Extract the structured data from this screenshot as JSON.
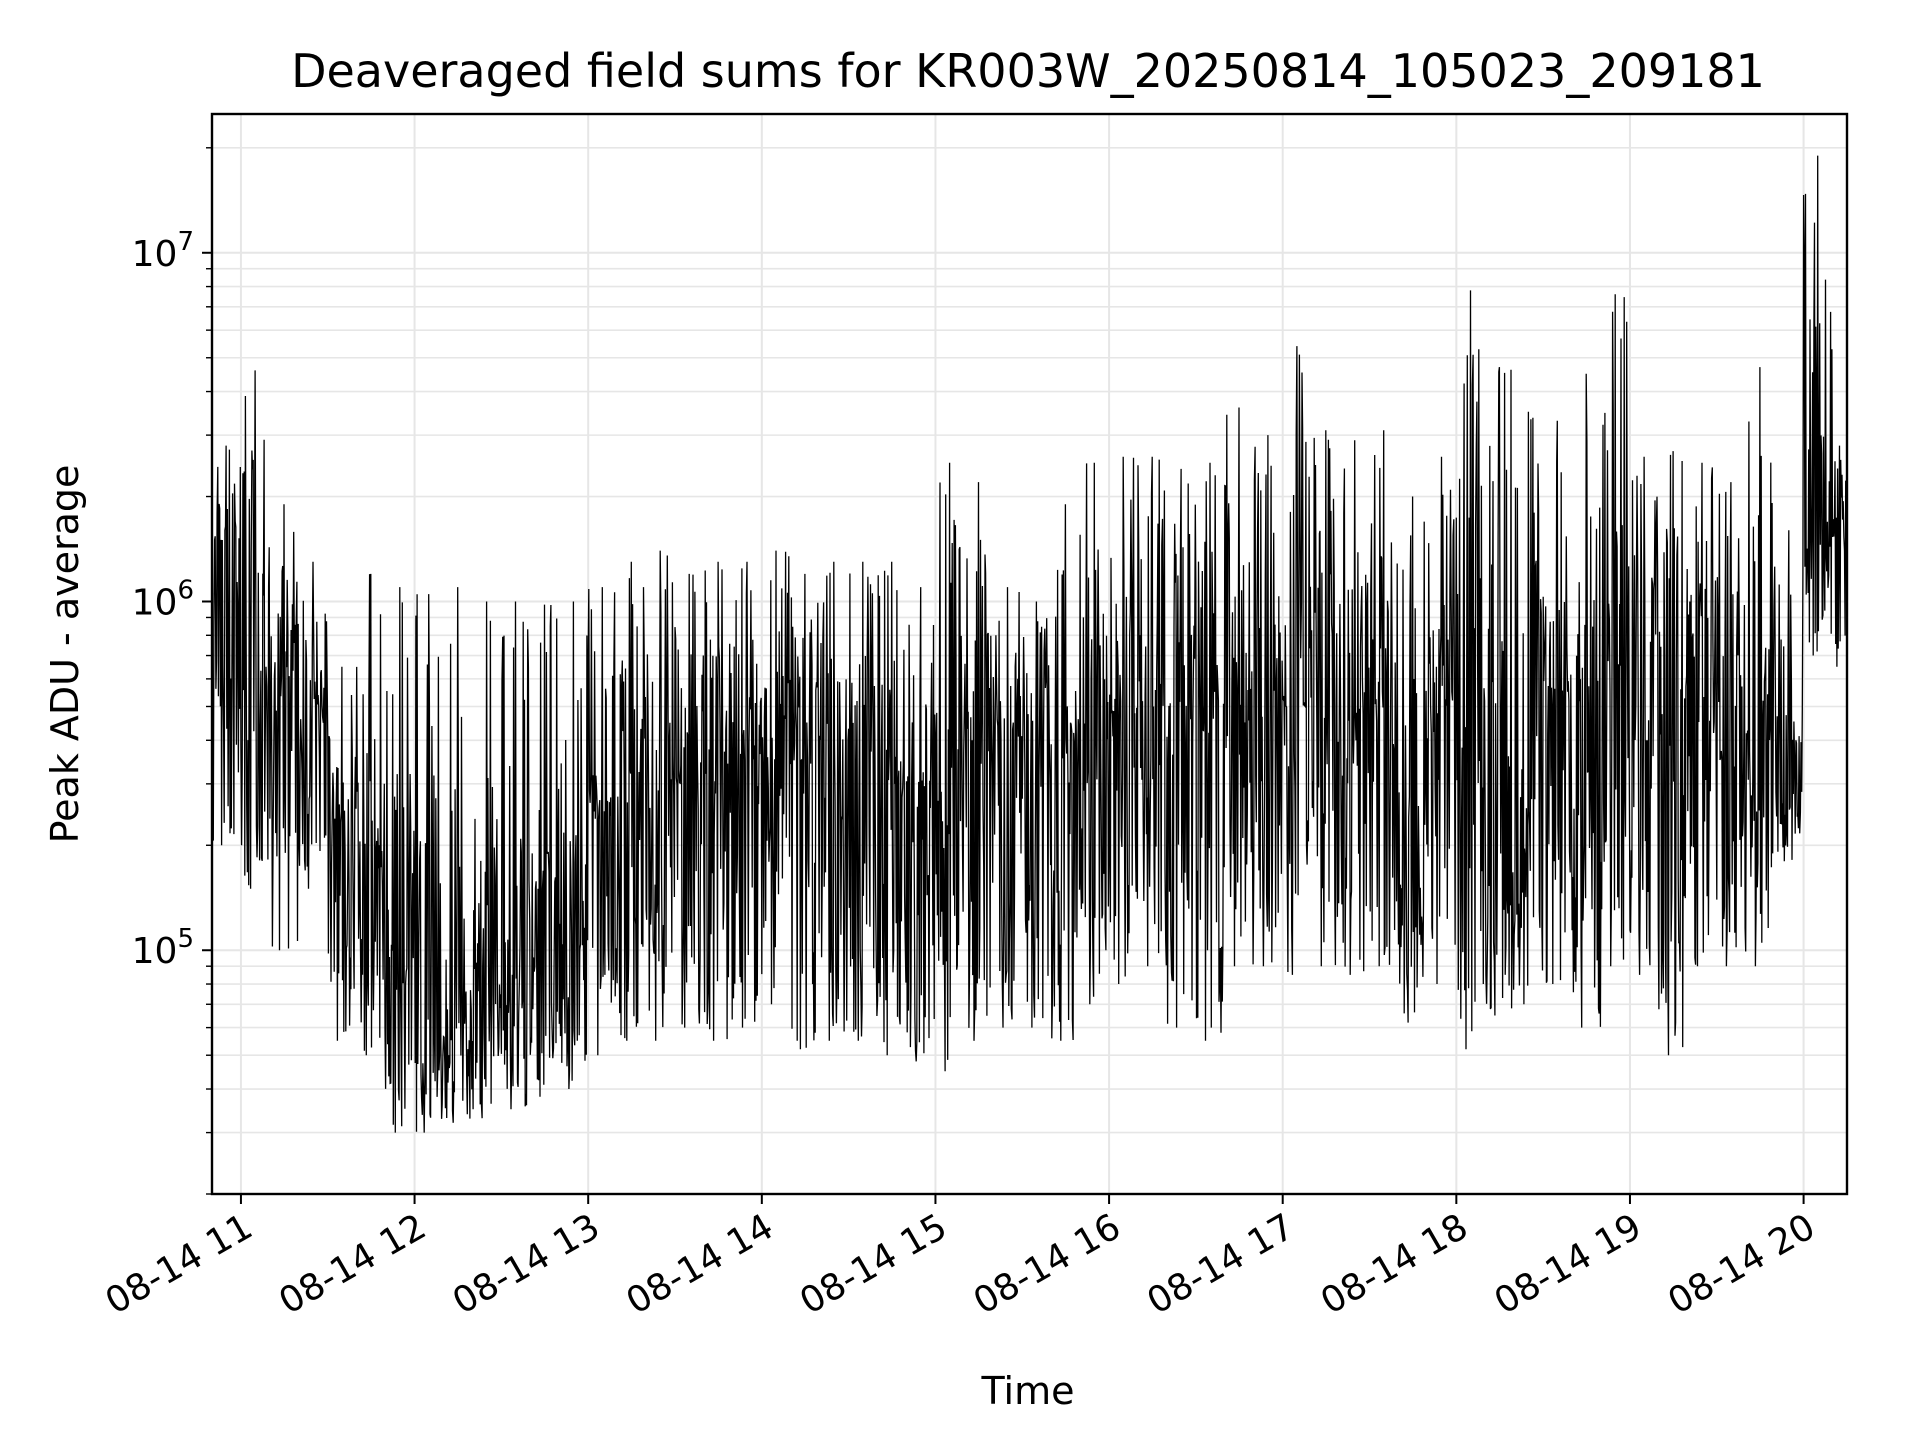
{
  "chart_data": {
    "type": "line",
    "title": "Deaveraged field sums for KR003W_20250814_105023_209181",
    "xlabel": "Time",
    "ylabel": "Peak ADU - average",
    "yscale": "log",
    "ylim": [
      20000,
      25000000
    ],
    "xlim": [
      "08-14 10:50",
      "08-14 20:15"
    ],
    "grid": true,
    "line_color": "#000000",
    "grid_color": "#e6e6e6",
    "x_ticks": [
      "08-14 11",
      "08-14 12",
      "08-14 13",
      "08-14 14",
      "08-14 15",
      "08-14 16",
      "08-14 17",
      "08-14 18",
      "08-14 19",
      "08-14 20"
    ],
    "y_ticks": [
      {
        "value": 100000,
        "base": "10",
        "exp": "5"
      },
      {
        "value": 1000000,
        "base": "10",
        "exp": "6"
      },
      {
        "value": 10000000,
        "base": "10",
        "exp": "7"
      }
    ],
    "series": [
      {
        "x": [
          "10:50",
          "11:00",
          "11:10",
          "11:20",
          "11:30",
          "11:40",
          "11:50",
          "12:00",
          "12:10",
          "12:20",
          "12:30",
          "12:40",
          "12:50",
          "13:00",
          "13:10",
          "13:20",
          "13:30",
          "13:40",
          "13:50",
          "14:00",
          "14:10",
          "14:20",
          "14:30",
          "14:40",
          "14:50",
          "15:00",
          "15:10",
          "15:20",
          "15:30",
          "15:40",
          "15:50",
          "16:00",
          "16:10",
          "16:20",
          "16:30",
          "16:40",
          "16:50",
          "17:00",
          "17:10",
          "17:20",
          "17:30",
          "17:40",
          "17:50",
          "18:00",
          "18:10",
          "18:20",
          "18:30",
          "18:40",
          "18:50",
          "19:00",
          "19:10",
          "19:20",
          "19:30",
          "19:40",
          "19:50",
          "20:00",
          "20:10",
          "20:15"
        ],
        "median": [
          1500000,
          1000000,
          600000,
          500000,
          250000,
          200000,
          80000,
          70000,
          80000,
          90000,
          100000,
          150000,
          100000,
          250000,
          300000,
          250000,
          300000,
          300000,
          350000,
          400000,
          350000,
          400000,
          350000,
          300000,
          300000,
          350000,
          400000,
          400000,
          350000,
          300000,
          400000,
          450000,
          500000,
          500000,
          400000,
          450000,
          550000,
          500000,
          450000,
          450000,
          550000,
          200000,
          500000,
          550000,
          300000,
          250000,
          500000,
          450000,
          550000,
          400000,
          550000,
          450000,
          500000,
          400000,
          400000,
          1300000,
          1500000,
          1500000
        ],
        "low": [
          200000,
          150000,
          100000,
          150000,
          55000,
          50000,
          30000,
          30000,
          32000,
          33000,
          35000,
          38000,
          40000,
          50000,
          55000,
          55000,
          60000,
          55000,
          60000,
          70000,
          52000,
          55000,
          55000,
          50000,
          48000,
          45000,
          55000,
          60000,
          60000,
          55000,
          70000,
          80000,
          90000,
          60000,
          55000,
          90000,
          90000,
          85000,
          90000,
          85000,
          90000,
          62000,
          80000,
          52000,
          65000,
          70000,
          80000,
          60000,
          90000,
          85000,
          50000,
          90000,
          90000,
          90000,
          180000,
          700000,
          650000,
          800000
        ],
        "high": [
          2800000,
          4600000,
          1900000,
          1300000,
          650000,
          1200000,
          1100000,
          1050000,
          1100000,
          1000000,
          1000000,
          980000,
          1000000,
          1100000,
          1300000,
          1400000,
          1200000,
          1300000,
          1300000,
          1400000,
          1200000,
          1300000,
          1300000,
          1300000,
          1100000,
          2500000,
          2200000,
          1100000,
          1000000,
          1900000,
          2500000,
          2600000,
          2600000,
          2400000,
          2500000,
          3600000,
          3000000,
          5400000,
          3100000,
          2900000,
          3100000,
          2000000,
          2600000,
          7800000,
          4700000,
          3500000,
          3300000,
          4500000,
          7600000,
          2600000,
          2700000,
          2500000,
          2200000,
          4700000,
          1600000,
          19000000,
          2800000,
          2600000
        ]
      }
    ]
  }
}
